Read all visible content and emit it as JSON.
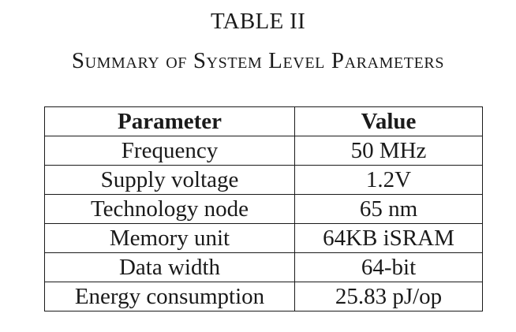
{
  "table": {
    "label": "TABLE II",
    "caption": "Summary of System Level Parameters",
    "headers": [
      "Parameter",
      "Value"
    ],
    "rows": [
      [
        "Frequency",
        "50 MHz"
      ],
      [
        "Supply voltage",
        "1.2V"
      ],
      [
        "Technology node",
        "65 nm"
      ],
      [
        "Memory unit",
        "64KB iSRAM"
      ],
      [
        "Data width",
        "64-bit"
      ],
      [
        "Energy consumption",
        "25.83 pJ/op"
      ]
    ]
  }
}
